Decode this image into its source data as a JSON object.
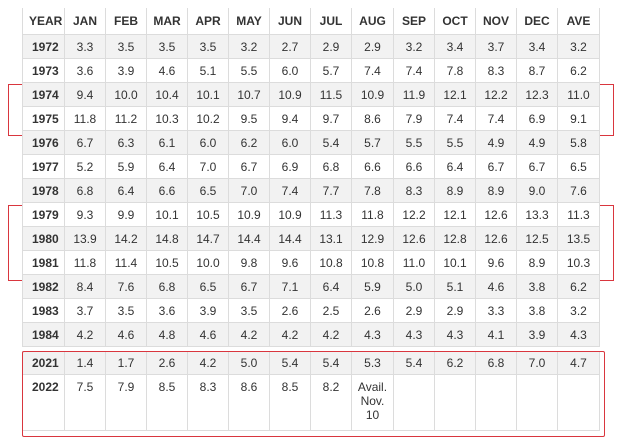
{
  "headers": [
    "YEAR",
    "JAN",
    "FEB",
    "MAR",
    "APR",
    "MAY",
    "JUN",
    "JUL",
    "AUG",
    "SEP",
    "OCT",
    "NOV",
    "DEC",
    "AVE"
  ],
  "rows_top": [
    [
      "1972",
      "3.3",
      "3.5",
      "3.5",
      "3.5",
      "3.2",
      "2.7",
      "2.9",
      "2.9",
      "3.2",
      "3.4",
      "3.7",
      "3.4",
      "3.2"
    ],
    [
      "1973",
      "3.6",
      "3.9",
      "4.6",
      "5.1",
      "5.5",
      "6.0",
      "5.7",
      "7.4",
      "7.4",
      "7.8",
      "8.3",
      "8.7",
      "6.2"
    ],
    [
      "1974",
      "9.4",
      "10.0",
      "10.4",
      "10.1",
      "10.7",
      "10.9",
      "11.5",
      "10.9",
      "11.9",
      "12.1",
      "12.2",
      "12.3",
      "11.0"
    ],
    [
      "1975",
      "11.8",
      "11.2",
      "10.3",
      "10.2",
      "9.5",
      "9.4",
      "9.7",
      "8.6",
      "7.9",
      "7.4",
      "7.4",
      "6.9",
      "9.1"
    ],
    [
      "1976",
      "6.7",
      "6.3",
      "6.1",
      "6.0",
      "6.2",
      "6.0",
      "5.4",
      "5.7",
      "5.5",
      "5.5",
      "4.9",
      "4.9",
      "5.8"
    ],
    [
      "1977",
      "5.2",
      "5.9",
      "6.4",
      "7.0",
      "6.7",
      "6.9",
      "6.8",
      "6.6",
      "6.6",
      "6.4",
      "6.7",
      "6.7",
      "6.5"
    ],
    [
      "1978",
      "6.8",
      "6.4",
      "6.6",
      "6.5",
      "7.0",
      "7.4",
      "7.7",
      "7.8",
      "8.3",
      "8.9",
      "8.9",
      "9.0",
      "7.6"
    ],
    [
      "1979",
      "9.3",
      "9.9",
      "10.1",
      "10.5",
      "10.9",
      "10.9",
      "11.3",
      "11.8",
      "12.2",
      "12.1",
      "12.6",
      "13.3",
      "11.3"
    ],
    [
      "1980",
      "13.9",
      "14.2",
      "14.8",
      "14.7",
      "14.4",
      "14.4",
      "13.1",
      "12.9",
      "12.6",
      "12.8",
      "12.6",
      "12.5",
      "13.5"
    ],
    [
      "1981",
      "11.8",
      "11.4",
      "10.5",
      "10.0",
      "9.8",
      "9.6",
      "10.8",
      "10.8",
      "11.0",
      "10.1",
      "9.6",
      "8.9",
      "10.3"
    ],
    [
      "1982",
      "8.4",
      "7.6",
      "6.8",
      "6.5",
      "6.7",
      "7.1",
      "6.4",
      "5.9",
      "5.0",
      "5.1",
      "4.6",
      "3.8",
      "6.2"
    ],
    [
      "1983",
      "3.7",
      "3.5",
      "3.6",
      "3.9",
      "3.5",
      "2.6",
      "2.5",
      "2.6",
      "2.9",
      "2.9",
      "3.3",
      "3.8",
      "3.2"
    ],
    [
      "1984",
      "4.2",
      "4.6",
      "4.8",
      "4.6",
      "4.2",
      "4.2",
      "4.2",
      "4.3",
      "4.3",
      "4.3",
      "4.1",
      "3.9",
      "4.3"
    ]
  ],
  "rows_bottom": [
    [
      "2021",
      "1.4",
      "1.7",
      "2.6",
      "4.2",
      "5.0",
      "5.4",
      "5.4",
      "5.3",
      "5.4",
      "6.2",
      "6.8",
      "7.0",
      "4.7"
    ],
    [
      "2022",
      "7.5",
      "7.9",
      "8.5",
      "8.3",
      "8.6",
      "8.5",
      "8.2",
      "Avail.\nNov.\n10",
      "",
      "",
      "",
      "",
      ""
    ]
  ],
  "colors": {
    "highlight": "#d9363e",
    "stripe": "#f2f2f2",
    "grid": "#dcdcdc"
  }
}
